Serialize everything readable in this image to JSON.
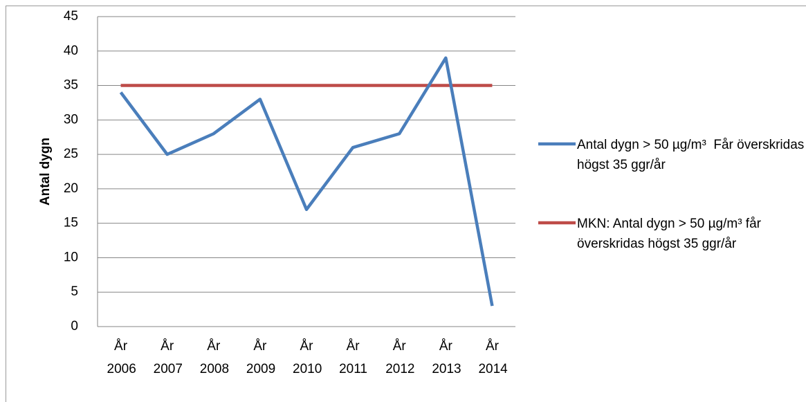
{
  "chart_data": {
    "type": "line",
    "y_label": "Antal dygn",
    "categories": [
      "År 2006",
      "År 2007",
      "År 2008",
      "År 2009",
      "År 2010",
      "År 2011",
      "År 2012",
      "År 2013",
      "År 2014"
    ],
    "series": [
      {
        "name": "Antal dygn > 50 µg/m³  Får överskridas högst 35 ggr/år",
        "color": "#4a7ebb",
        "values": [
          34,
          25,
          28,
          33,
          17,
          26,
          28,
          39,
          3
        ]
      },
      {
        "name": "MKN: Antal dygn > 50 µg/m³ får överskridas högst 35 ggr/år",
        "color": "#be4b48",
        "values": [
          35,
          35,
          35,
          35,
          35,
          35,
          35,
          35,
          35
        ]
      }
    ],
    "ylim": [
      0,
      45
    ],
    "yticks": [
      0,
      5,
      10,
      15,
      20,
      25,
      30,
      35,
      40,
      45
    ],
    "grid": true,
    "legend": "right"
  }
}
